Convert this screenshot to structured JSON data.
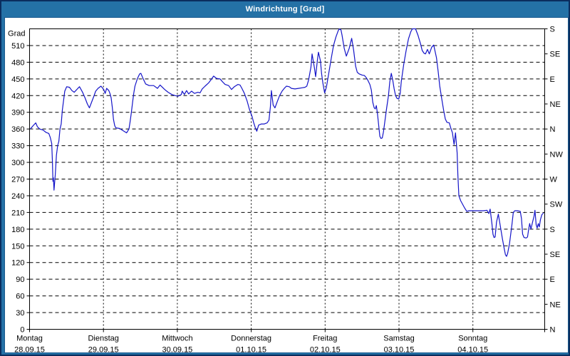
{
  "window": {
    "title": "Windrichtung [Grad]"
  },
  "chart_data": {
    "type": "line",
    "title": "Windrichtung [Grad]",
    "grid": true,
    "legend": "none",
    "y_axis_left": {
      "label": "Grad",
      "min": 0,
      "max": 540,
      "tick_step": 30
    },
    "y_axis_right": {
      "labels": [
        {
          "deg": 0,
          "label": "N"
        },
        {
          "deg": 45,
          "label": "NE"
        },
        {
          "deg": 90,
          "label": "E"
        },
        {
          "deg": 135,
          "label": "SE"
        },
        {
          "deg": 180,
          "label": "S"
        },
        {
          "deg": 225,
          "label": "SW"
        },
        {
          "deg": 270,
          "label": "W"
        },
        {
          "deg": 315,
          "label": "NW"
        },
        {
          "deg": 360,
          "label": "N"
        },
        {
          "deg": 405,
          "label": "NE"
        },
        {
          "deg": 450,
          "label": "E"
        },
        {
          "deg": 495,
          "label": "SE"
        },
        {
          "deg": 540,
          "label": "S"
        }
      ]
    },
    "x_axis": {
      "span_days": 7,
      "days": [
        {
          "weekday": "Montag",
          "date": "28.09.15"
        },
        {
          "weekday": "Dienstag",
          "date": "29.09.15"
        },
        {
          "weekday": "Mittwoch",
          "date": "30.09.15"
        },
        {
          "weekday": "Donnerstag",
          "date": "01.10.15"
        },
        {
          "weekday": "Freitag",
          "date": "02.10.15"
        },
        {
          "weekday": "Samstag",
          "date": "03.10.15"
        },
        {
          "weekday": "Sonntag",
          "date": "04.10.15"
        }
      ]
    },
    "colors": {
      "frame": "#2471a6",
      "frame_border": "#0a2d5e",
      "panel_border": "#1b5a8f",
      "background": "#ffffff",
      "grid": "#000000",
      "line": "#1414c8"
    },
    "series": [
      {
        "name": "Windrichtung",
        "unit": "Grad",
        "points": [
          [
            0.01,
            360
          ],
          [
            0.048,
            366
          ],
          [
            0.084,
            371
          ],
          [
            0.106,
            364
          ],
          [
            0.138,
            360
          ],
          [
            0.183,
            358
          ],
          [
            0.222,
            354
          ],
          [
            0.26,
            352
          ],
          [
            0.28,
            345
          ],
          [
            0.3,
            334
          ],
          [
            0.31,
            300
          ],
          [
            0.316,
            266
          ],
          [
            0.323,
            272
          ],
          [
            0.331,
            250
          ],
          [
            0.348,
            278
          ],
          [
            0.364,
            313
          ],
          [
            0.38,
            330
          ],
          [
            0.396,
            338
          ],
          [
            0.412,
            360
          ],
          [
            0.428,
            369
          ],
          [
            0.444,
            394
          ],
          [
            0.46,
            411
          ],
          [
            0.476,
            428
          ],
          [
            0.502,
            436
          ],
          [
            0.54,
            435
          ],
          [
            0.573,
            429
          ],
          [
            0.605,
            426
          ],
          [
            0.654,
            433
          ],
          [
            0.676,
            436
          ],
          [
            0.717,
            426
          ],
          [
            0.75,
            416
          ],
          [
            0.782,
            405
          ],
          [
            0.81,
            398
          ],
          [
            0.862,
            416
          ],
          [
            0.895,
            428
          ],
          [
            0.927,
            433
          ],
          [
            0.966,
            437
          ],
          [
            1.004,
            431
          ],
          [
            1.023,
            424
          ],
          [
            1.043,
            433
          ],
          [
            1.072,
            429
          ],
          [
            1.088,
            424
          ],
          [
            1.104,
            416
          ],
          [
            1.12,
            399
          ],
          [
            1.136,
            377
          ],
          [
            1.152,
            366
          ],
          [
            1.168,
            362
          ],
          [
            1.217,
            361
          ],
          [
            1.265,
            357
          ],
          [
            1.313,
            353
          ],
          [
            1.345,
            360
          ],
          [
            1.361,
            373
          ],
          [
            1.378,
            390
          ],
          [
            1.393,
            407
          ],
          [
            1.41,
            424
          ],
          [
            1.426,
            437
          ],
          [
            1.458,
            450
          ],
          [
            1.49,
            459
          ],
          [
            1.506,
            460
          ],
          [
            1.538,
            450
          ],
          [
            1.571,
            441
          ],
          [
            1.619,
            438
          ],
          [
            1.68,
            438
          ],
          [
            1.731,
            433
          ],
          [
            1.767,
            439
          ],
          [
            1.828,
            431
          ],
          [
            1.876,
            426
          ],
          [
            1.925,
            422
          ],
          [
            1.973,
            420
          ],
          [
            2.009,
            419
          ],
          [
            2.054,
            422
          ],
          [
            2.066,
            428
          ],
          [
            2.095,
            422
          ],
          [
            2.124,
            429
          ],
          [
            2.153,
            423
          ],
          [
            2.192,
            428
          ],
          [
            2.231,
            424
          ],
          [
            2.279,
            426
          ],
          [
            2.308,
            425
          ],
          [
            2.337,
            432
          ],
          [
            2.375,
            437
          ],
          [
            2.424,
            443
          ],
          [
            2.453,
            448
          ],
          [
            2.491,
            455
          ],
          [
            2.53,
            451
          ],
          [
            2.578,
            450
          ],
          [
            2.617,
            444
          ],
          [
            2.646,
            440
          ],
          [
            2.694,
            438
          ],
          [
            2.733,
            431
          ],
          [
            2.771,
            436
          ],
          [
            2.82,
            440
          ],
          [
            2.849,
            439
          ],
          [
            2.878,
            432
          ],
          [
            2.907,
            424
          ],
          [
            2.945,
            410
          ],
          [
            2.974,
            396
          ],
          [
            3.013,
            382
          ],
          [
            3.032,
            372
          ],
          [
            3.056,
            362
          ],
          [
            3.075,
            356
          ],
          [
            3.1,
            367
          ],
          [
            3.138,
            369
          ],
          [
            3.177,
            369
          ],
          [
            3.215,
            371
          ],
          [
            3.24,
            376
          ],
          [
            3.259,
            400
          ],
          [
            3.273,
            429
          ],
          [
            3.297,
            403
          ],
          [
            3.321,
            398
          ],
          [
            3.355,
            410
          ],
          [
            3.384,
            420
          ],
          [
            3.418,
            428
          ],
          [
            3.447,
            433
          ],
          [
            3.476,
            437
          ],
          [
            3.515,
            436
          ],
          [
            3.544,
            433
          ],
          [
            3.592,
            432
          ],
          [
            3.64,
            433
          ],
          [
            3.689,
            434
          ],
          [
            3.727,
            435
          ],
          [
            3.752,
            437
          ],
          [
            3.776,
            448
          ],
          [
            3.808,
            471
          ],
          [
            3.824,
            495
          ],
          [
            3.856,
            469
          ],
          [
            3.872,
            454
          ],
          [
            3.894,
            482
          ],
          [
            3.909,
            498
          ],
          [
            3.937,
            482
          ],
          [
            3.952,
            460
          ],
          [
            3.969,
            443
          ],
          [
            3.993,
            425
          ],
          [
            4.017,
            435
          ],
          [
            4.049,
            460
          ],
          [
            4.082,
            486
          ],
          [
            4.114,
            510
          ],
          [
            4.146,
            525
          ],
          [
            4.178,
            537
          ],
          [
            4.196,
            540
          ],
          [
            4.215,
            538
          ],
          [
            4.229,
            529
          ],
          [
            4.258,
            505
          ],
          [
            4.287,
            491
          ],
          [
            4.326,
            505
          ],
          [
            4.36,
            523
          ],
          [
            4.387,
            501
          ],
          [
            4.413,
            473
          ],
          [
            4.435,
            462
          ],
          [
            4.461,
            459
          ],
          [
            4.5,
            457
          ],
          [
            4.532,
            456
          ],
          [
            4.558,
            452
          ],
          [
            4.577,
            448
          ],
          [
            4.606,
            440
          ],
          [
            4.626,
            430
          ],
          [
            4.645,
            408
          ],
          [
            4.664,
            398
          ],
          [
            4.679,
            396
          ],
          [
            4.693,
            402
          ],
          [
            4.71,
            386
          ],
          [
            4.727,
            364
          ],
          [
            4.741,
            347
          ],
          [
            4.756,
            343
          ],
          [
            4.773,
            344
          ],
          [
            4.79,
            355
          ],
          [
            4.812,
            377
          ],
          [
            4.833,
            398
          ],
          [
            4.857,
            420
          ],
          [
            4.876,
            445
          ],
          [
            4.896,
            460
          ],
          [
            4.915,
            448
          ],
          [
            4.934,
            432
          ],
          [
            4.954,
            420
          ],
          [
            4.973,
            415
          ],
          [
            4.997,
            414
          ],
          [
            5.016,
            424
          ],
          [
            5.031,
            445
          ],
          [
            5.063,
            475
          ],
          [
            5.096,
            501
          ],
          [
            5.128,
            522
          ],
          [
            5.16,
            535
          ],
          [
            5.181,
            540
          ],
          [
            5.224,
            540
          ],
          [
            5.256,
            529
          ],
          [
            5.289,
            514
          ],
          [
            5.314,
            501
          ],
          [
            5.34,
            496
          ],
          [
            5.359,
            495
          ],
          [
            5.385,
            503
          ],
          [
            5.41,
            495
          ],
          [
            5.443,
            507
          ],
          [
            5.47,
            511
          ],
          [
            5.507,
            488
          ],
          [
            5.53,
            463
          ],
          [
            5.552,
            437
          ],
          [
            5.578,
            415
          ],
          [
            5.604,
            394
          ],
          [
            5.627,
            378
          ],
          [
            5.649,
            372
          ],
          [
            5.681,
            371
          ],
          [
            5.7,
            362
          ],
          [
            5.723,
            353
          ],
          [
            5.745,
            332
          ],
          [
            5.765,
            353
          ],
          [
            5.787,
            317
          ],
          [
            5.797,
            278
          ],
          [
            5.81,
            240
          ],
          [
            5.835,
            231
          ],
          [
            5.884,
            219
          ],
          [
            5.917,
            212
          ],
          [
            5.948,
            213
          ],
          [
            5.997,
            213
          ],
          [
            6.045,
            213
          ],
          [
            6.093,
            213
          ],
          [
            6.142,
            213
          ],
          [
            6.19,
            214
          ],
          [
            6.216,
            208
          ],
          [
            6.233,
            216
          ],
          [
            6.257,
            190
          ],
          [
            6.272,
            171
          ],
          [
            6.286,
            165
          ],
          [
            6.301,
            166
          ],
          [
            6.32,
            193
          ],
          [
            6.344,
            207
          ],
          [
            6.373,
            184
          ],
          [
            6.399,
            163
          ],
          [
            6.422,
            146
          ],
          [
            6.441,
            134
          ],
          [
            6.455,
            131
          ],
          [
            6.47,
            136
          ],
          [
            6.496,
            154
          ],
          [
            6.528,
            188
          ],
          [
            6.547,
            210
          ],
          [
            6.567,
            213
          ],
          [
            6.605,
            213
          ],
          [
            6.641,
            212
          ],
          [
            6.658,
            199
          ],
          [
            6.673,
            171
          ],
          [
            6.692,
            165
          ],
          [
            6.721,
            164
          ],
          [
            6.74,
            166
          ],
          [
            6.755,
            180
          ],
          [
            6.769,
            190
          ],
          [
            6.786,
            180
          ],
          [
            6.808,
            193
          ],
          [
            6.827,
            203
          ],
          [
            6.84,
            214
          ],
          [
            6.856,
            188
          ],
          [
            6.87,
            182
          ],
          [
            6.885,
            190
          ],
          [
            6.899,
            184
          ],
          [
            6.914,
            197
          ],
          [
            6.933,
            206
          ],
          [
            6.957,
            209
          ]
        ]
      }
    ]
  }
}
